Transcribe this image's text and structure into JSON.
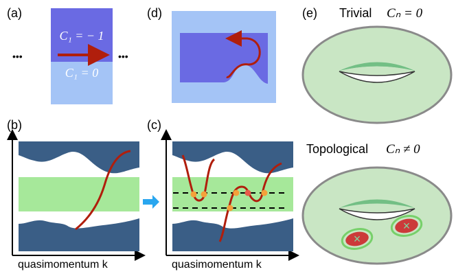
{
  "panels": {
    "a": {
      "tag": "(a)",
      "upper_label": "C₁ = − 1",
      "lower_label": "C₁ = 0",
      "ellipsis": "•••"
    },
    "b": {
      "tag": "(b)",
      "xlabel": "quasimomentum k"
    },
    "c": {
      "tag": "(c)",
      "xlabel": "quasimomentum k"
    },
    "d": {
      "tag": "(d)"
    },
    "e": {
      "tag": "(e)",
      "trivial_text": "Trivial",
      "trivial_math": "Cₙ = 0",
      "topological_text": "Topological",
      "topological_math": "Cₙ ≠ 0",
      "defect_mark": "×"
    }
  },
  "colors": {
    "band_dark": "#3a5e86",
    "gap_green": "#a6e89a",
    "curve_red": "#b01e0c",
    "region_blue_dark": "#6a6ae3",
    "region_blue_light": "#a4c4f6",
    "torus_green": "#c9e6c4",
    "hole_green": "#73bf85",
    "defect_red": "#cc3a3a",
    "arrow_blue": "#29a6ef",
    "dot_orange": "#f4a13a"
  }
}
